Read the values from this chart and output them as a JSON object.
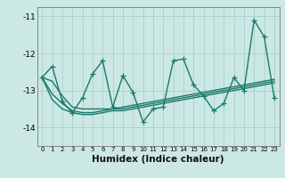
{
  "xlabel": "Humidex (Indice chaleur)",
  "ylabel": "",
  "x": [
    0,
    1,
    2,
    3,
    4,
    5,
    6,
    7,
    8,
    9,
    10,
    11,
    12,
    13,
    14,
    15,
    16,
    17,
    18,
    19,
    20,
    21,
    22,
    23
  ],
  "y_main": [
    -12.65,
    -12.35,
    -13.3,
    -13.6,
    -13.2,
    -12.55,
    -12.2,
    -13.45,
    -12.6,
    -13.05,
    -13.85,
    -13.5,
    -13.45,
    -12.2,
    -12.15,
    -12.85,
    -13.15,
    -13.55,
    -13.35,
    -12.65,
    -13.0,
    -11.1,
    -11.55,
    -13.2
  ],
  "y_line1": [
    -12.65,
    -12.75,
    -13.15,
    -13.45,
    -13.5,
    -13.5,
    -13.5,
    -13.5,
    -13.45,
    -13.4,
    -13.35,
    -13.3,
    -13.25,
    -13.2,
    -13.15,
    -13.1,
    -13.05,
    -13.0,
    -12.95,
    -12.9,
    -12.85,
    -12.8,
    -12.75,
    -12.7
  ],
  "y_line2": [
    -12.65,
    -13.1,
    -13.35,
    -13.55,
    -13.6,
    -13.6,
    -13.55,
    -13.5,
    -13.5,
    -13.45,
    -13.4,
    -13.35,
    -13.3,
    -13.25,
    -13.2,
    -13.15,
    -13.1,
    -13.05,
    -13.0,
    -12.95,
    -12.9,
    -12.85,
    -12.8,
    -12.75
  ],
  "y_line3": [
    -12.65,
    -13.25,
    -13.5,
    -13.6,
    -13.65,
    -13.65,
    -13.6,
    -13.55,
    -13.55,
    -13.5,
    -13.45,
    -13.4,
    -13.35,
    -13.3,
    -13.25,
    -13.2,
    -13.15,
    -13.1,
    -13.05,
    -13.0,
    -12.95,
    -12.9,
    -12.85,
    -12.8
  ],
  "line_color": "#1a7a6a",
  "bg_color": "#cce8e4",
  "grid_color": "#aacfcc",
  "ylim": [
    -14.5,
    -10.75
  ],
  "yticks": [
    -14,
    -13,
    -12,
    -11
  ],
  "marker": "+",
  "markersize": 4,
  "linewidth": 1.0
}
